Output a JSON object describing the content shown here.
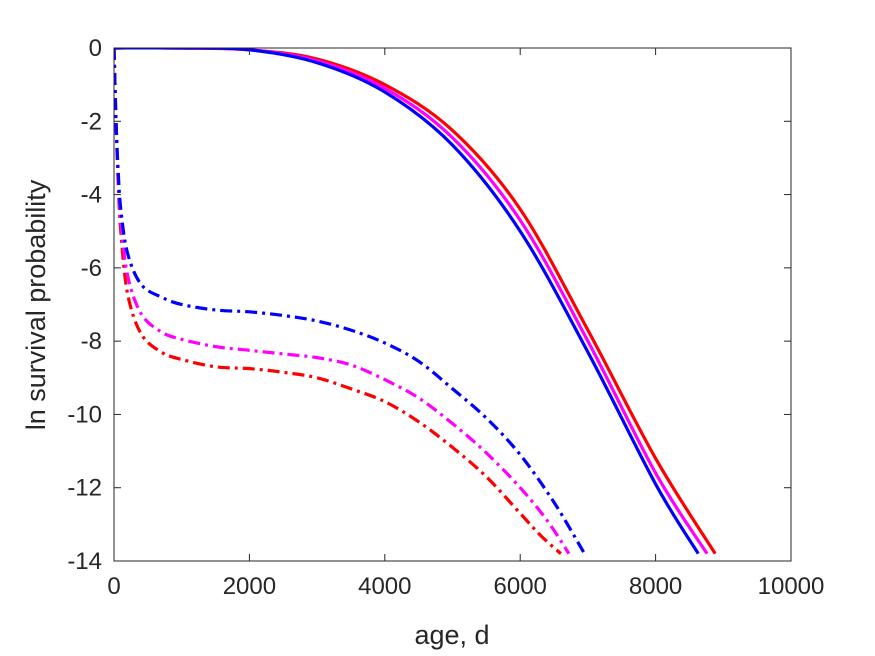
{
  "chart_data": {
    "type": "line",
    "title": "",
    "xlabel": "age, d",
    "ylabel": "ln survival probability",
    "xlim": [
      0,
      10000
    ],
    "ylim": [
      -14,
      0
    ],
    "xticks": [
      0,
      2000,
      4000,
      6000,
      8000,
      10000
    ],
    "yticks": [
      0,
      -2,
      -4,
      -6,
      -8,
      -10,
      -12,
      -14
    ],
    "xtick_labels": [
      "0",
      "2000",
      "4000",
      "6000",
      "8000",
      "10000"
    ],
    "ytick_labels": [
      "0",
      "-2",
      "-4",
      "-6",
      "-8",
      "-10",
      "-12",
      "-14"
    ],
    "grid": false,
    "legend": "none",
    "series": [
      {
        "color": "#ff0000",
        "style": "solid",
        "x": [
          0,
          1000,
          2000,
          3000,
          4000,
          5000,
          6000,
          7000,
          8000,
          8880
        ],
        "y": [
          0,
          0,
          -0.05,
          -0.3,
          -1.0,
          -2.25,
          -4.4,
          -7.7,
          -11.2,
          -13.8
        ]
      },
      {
        "color": "#ff00ff",
        "style": "solid",
        "x": [
          0,
          1000,
          2000,
          3000,
          4000,
          5000,
          6000,
          7000,
          8000,
          8760
        ],
        "y": [
          0,
          0,
          -0.05,
          -0.35,
          -1.1,
          -2.45,
          -4.7,
          -8.0,
          -11.6,
          -13.8
        ]
      },
      {
        "color": "#0000ff",
        "style": "solid",
        "x": [
          0,
          1000,
          2000,
          3000,
          4000,
          5000,
          6000,
          7000,
          8000,
          8630
        ],
        "y": [
          0,
          0,
          -0.05,
          -0.4,
          -1.2,
          -2.65,
          -5.0,
          -8.3,
          -11.9,
          -13.8
        ]
      },
      {
        "color": "#ff0000",
        "style": "dashdot",
        "x": [
          0,
          30,
          60,
          100,
          200,
          400,
          700,
          1000,
          1500,
          2000,
          2500,
          3000,
          3500,
          4000,
          4500,
          5000,
          5500,
          6000,
          6300,
          6600
        ],
        "y": [
          0,
          -2.0,
          -3.6,
          -5.0,
          -6.7,
          -7.8,
          -8.3,
          -8.5,
          -8.7,
          -8.75,
          -8.85,
          -9.0,
          -9.3,
          -9.65,
          -10.2,
          -10.9,
          -11.7,
          -12.7,
          -13.3,
          -13.8
        ]
      },
      {
        "color": "#ff00ff",
        "style": "dashdot",
        "x": [
          0,
          30,
          60,
          100,
          200,
          400,
          700,
          1000,
          1500,
          2000,
          2500,
          3000,
          3500,
          4000,
          4500,
          5000,
          5500,
          6000,
          6400,
          6720
        ],
        "y": [
          0,
          -2.0,
          -3.4,
          -4.7,
          -6.2,
          -7.25,
          -7.75,
          -7.95,
          -8.15,
          -8.25,
          -8.35,
          -8.45,
          -8.65,
          -9.05,
          -9.55,
          -10.25,
          -11.05,
          -12.0,
          -12.9,
          -13.8
        ]
      },
      {
        "color": "#0000ff",
        "style": "dashdot",
        "x": [
          0,
          30,
          60,
          100,
          200,
          400,
          700,
          1000,
          1500,
          2000,
          2500,
          3000,
          3500,
          4000,
          4500,
          5000,
          5500,
          6000,
          6500,
          6950
        ],
        "y": [
          0,
          -2.0,
          -3.3,
          -4.4,
          -5.6,
          -6.45,
          -6.8,
          -7.0,
          -7.15,
          -7.2,
          -7.3,
          -7.45,
          -7.7,
          -8.05,
          -8.55,
          -9.3,
          -10.1,
          -11.1,
          -12.4,
          -13.8
        ]
      }
    ]
  }
}
